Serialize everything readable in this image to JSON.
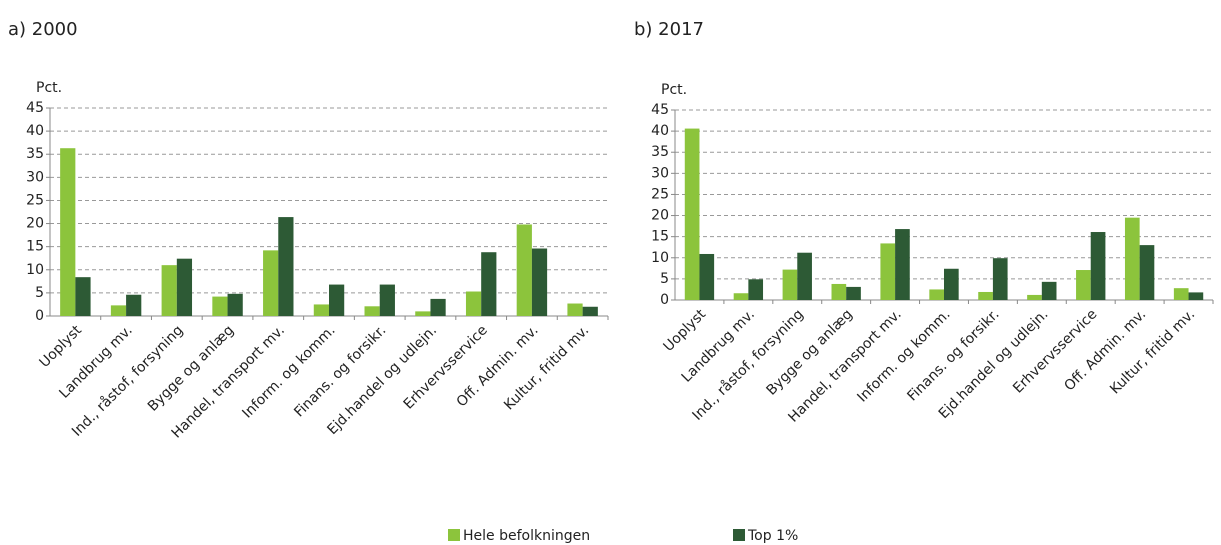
{
  "chart_data": [
    {
      "type": "bar",
      "title": "a) 2000",
      "y_label": "Pct.",
      "categories": [
        "Uoplyst",
        "Landbrug mv.",
        "Ind., råstof, forsyning",
        "Bygge og anlæg",
        "Handel, transport mv.",
        "Inform. og komm.",
        "Finans. og forsikr.",
        "Ejd.handel og udlejn.",
        "Erhvervsservice",
        "Off. Admin. mv.",
        "Kultur, fritid mv."
      ],
      "series": [
        {
          "values": [
            36.3,
            2.3,
            11,
            4.2,
            14.2,
            2.5,
            2.1,
            1,
            5.3,
            19.8,
            2.7
          ]
        },
        {
          "values": [
            8.4,
            4.6,
            12.4,
            4.8,
            21.4,
            6.8,
            6.8,
            3.7,
            13.8,
            14.6,
            2
          ]
        }
      ],
      "ylim": [
        0,
        45
      ],
      "yticks": [
        0,
        5,
        10,
        15,
        20,
        25,
        30,
        35,
        40,
        45
      ],
      "grid": true
    },
    {
      "type": "bar",
      "title": "b) 2017",
      "y_label": "Pct.",
      "categories": [
        "Uoplyst",
        "Landbrug mv.",
        "Ind., råstof, forsyning",
        "Bygge og anlæg",
        "Handel, transport mv.",
        "Inform. og komm.",
        "Finans. og forsikr.",
        "Ejd.handel og udlejn.",
        "Erhvervsservice",
        "Off. Admin. mv.",
        "Kultur, fritid mv."
      ],
      "series": [
        {
          "values": [
            40.6,
            1.6,
            7.2,
            3.8,
            13.4,
            2.5,
            1.9,
            1.2,
            7.1,
            19.5,
            2.8
          ]
        },
        {
          "values": [
            10.9,
            4.9,
            11.2,
            3.1,
            16.8,
            7.4,
            9.9,
            4.3,
            16.1,
            13,
            1.8
          ]
        }
      ],
      "ylim": [
        0,
        45
      ],
      "yticks": [
        0,
        5,
        10,
        15,
        20,
        25,
        30,
        35,
        40,
        45
      ],
      "grid": true
    }
  ],
  "legend": [
    {
      "name": "Hele befolkningen",
      "color": "#8cc43c"
    },
    {
      "name": "Top 1%",
      "color": "#2d5a35"
    }
  ]
}
